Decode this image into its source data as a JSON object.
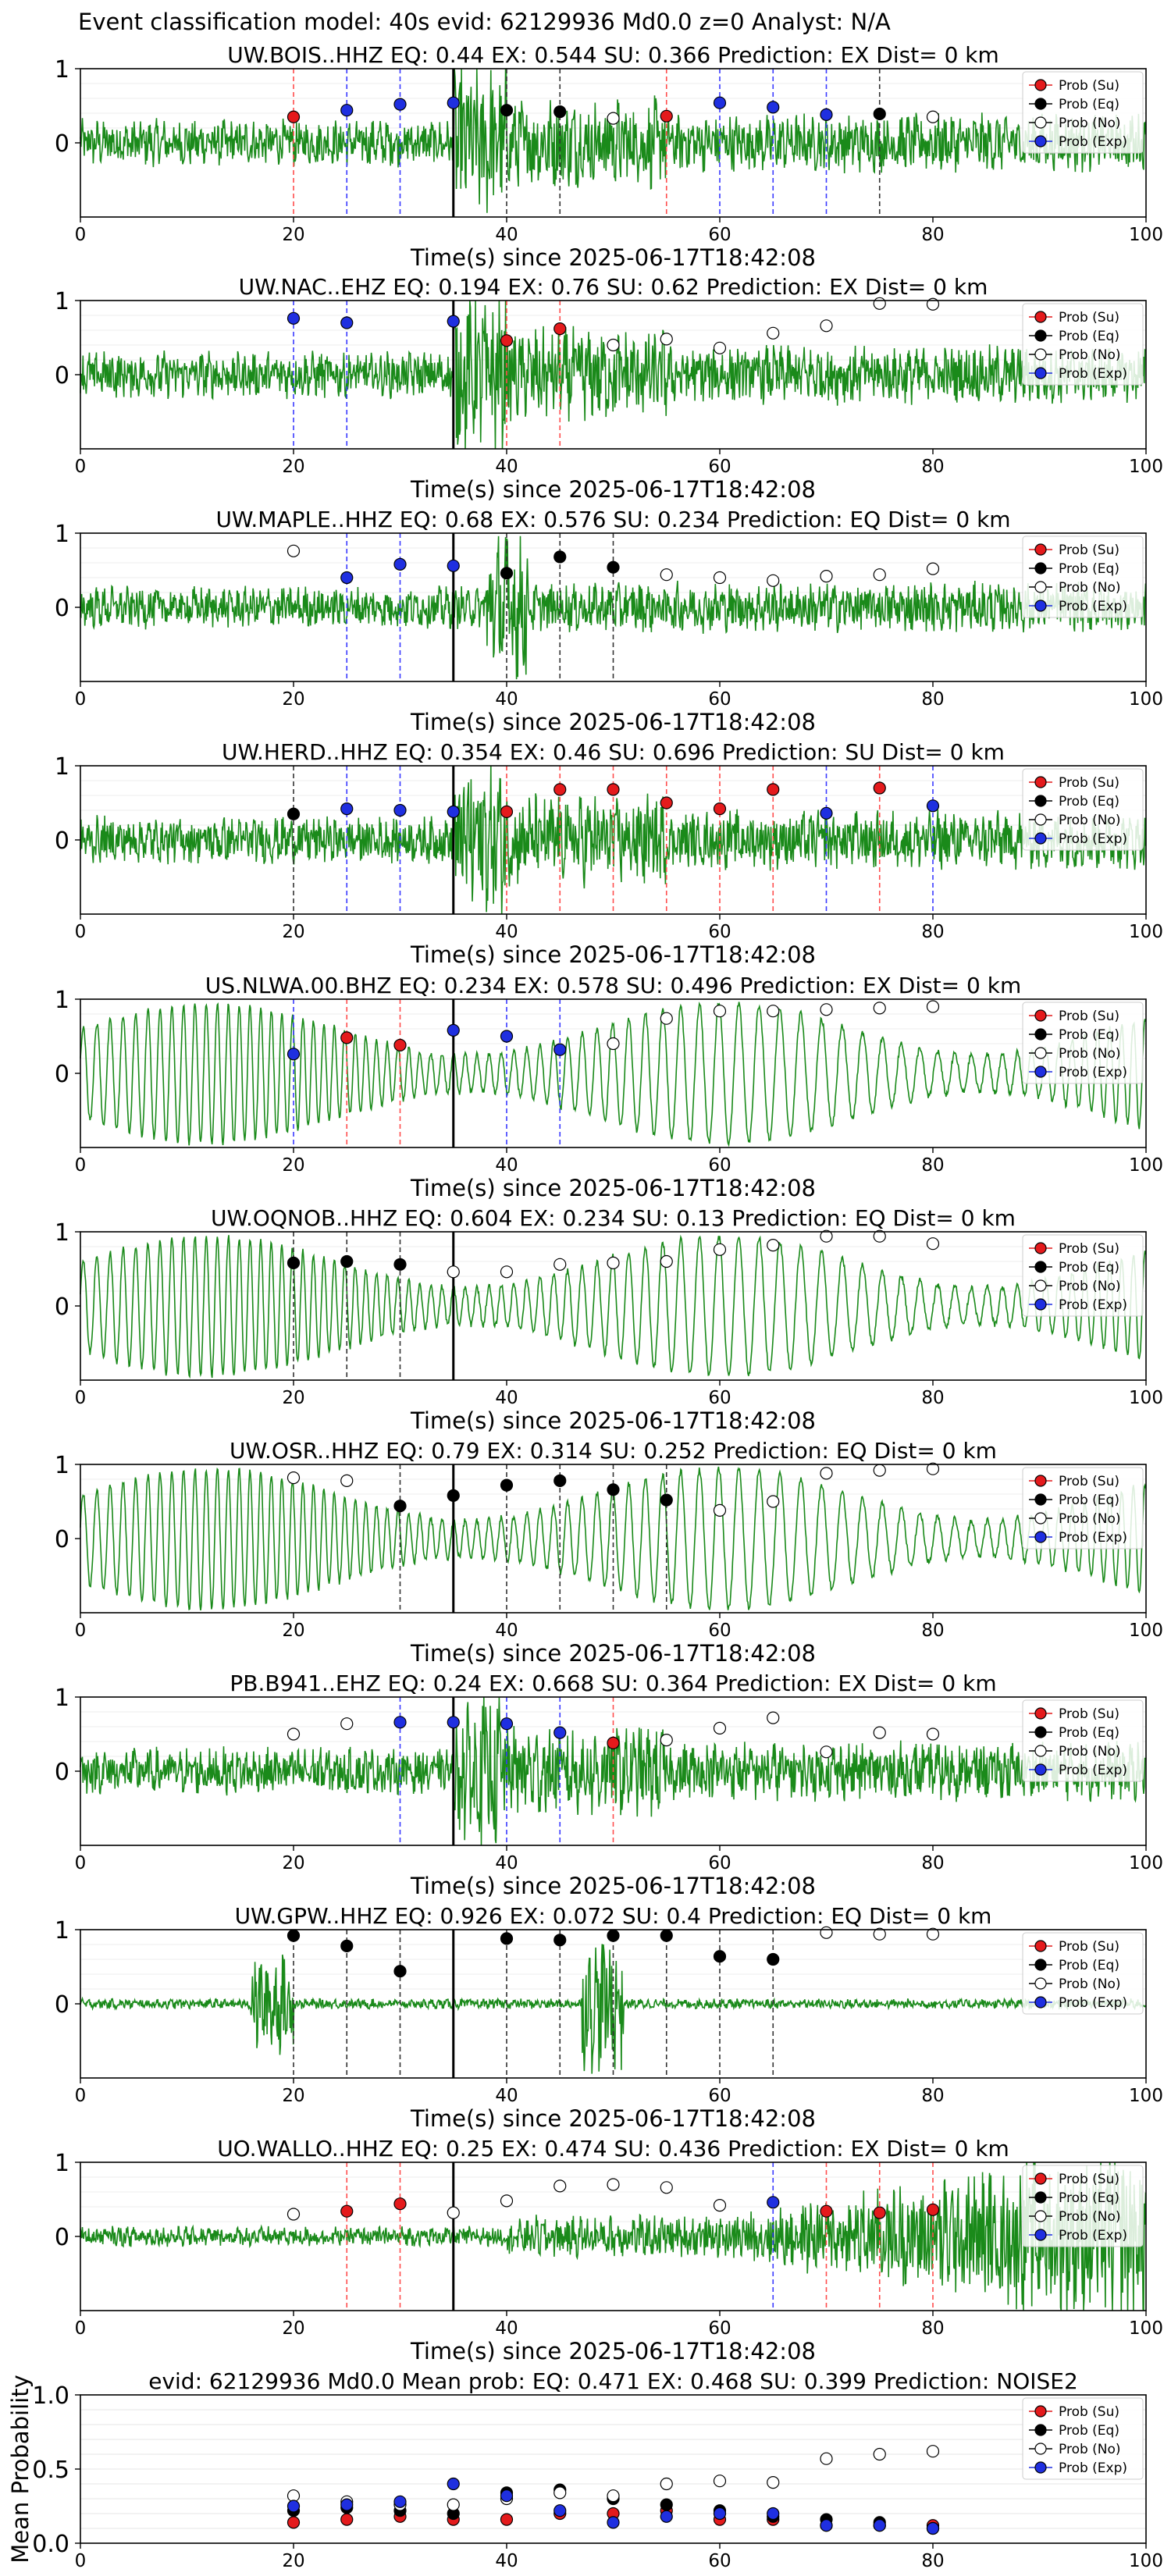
{
  "suptitle": "Event classification model: 40s evid: 62129936 Md0.0 z=0 Analyst: N/A",
  "legend_labels": [
    "Prob (Su)",
    "Prob (Eq)",
    "Prob (No)",
    "Prob (Exp)"
  ],
  "colors": {
    "su": "#e41a1c",
    "eq": "#000000",
    "no": "#ffffff",
    "exp": "#1f2fe0",
    "trace": "#1a8a1a",
    "line_su": "#ff4d4d",
    "line_eq": "#333333",
    "line_exp": "#3a3aff"
  },
  "chart_data": [
    {
      "type": "line",
      "title": "UW.BOIS..HHZ   EQ: 0.44   EX: 0.544   SU: 0.366   Prediction: EX    Dist= 0 km",
      "xlabel": "Time(s) since 2025-06-17T18:42:08",
      "ylabel": "",
      "xlim": [
        0,
        100
      ],
      "ylim": [
        -1,
        1
      ],
      "xticks": [
        0,
        20,
        40,
        60,
        80,
        100
      ],
      "yticks": [
        0,
        1
      ],
      "onset_s": 35,
      "trace_style": "high",
      "points": [
        {
          "x": 20,
          "y": 0.35,
          "class": "su"
        },
        {
          "x": 25,
          "y": 0.44,
          "class": "exp"
        },
        {
          "x": 30,
          "y": 0.52,
          "class": "exp"
        },
        {
          "x": 35,
          "y": 0.54,
          "class": "exp"
        },
        {
          "x": 40,
          "y": 0.44,
          "class": "eq"
        },
        {
          "x": 45,
          "y": 0.42,
          "class": "eq"
        },
        {
          "x": 50,
          "y": 0.33,
          "class": "no"
        },
        {
          "x": 55,
          "y": 0.36,
          "class": "su"
        },
        {
          "x": 60,
          "y": 0.54,
          "class": "exp"
        },
        {
          "x": 65,
          "y": 0.48,
          "class": "exp"
        },
        {
          "x": 70,
          "y": 0.38,
          "class": "exp"
        },
        {
          "x": 75,
          "y": 0.39,
          "class": "eq"
        },
        {
          "x": 80,
          "y": 0.35,
          "class": "no"
        }
      ]
    },
    {
      "type": "line",
      "title": "UW.NAC..EHZ   EQ: 0.194   EX: 0.76   SU: 0.62   Prediction: EX    Dist= 0 km",
      "xlabel": "Time(s) since 2025-06-17T18:42:08",
      "ylabel": "",
      "xlim": [
        0,
        100
      ],
      "ylim": [
        -1,
        1
      ],
      "xticks": [
        0,
        20,
        40,
        60,
        80,
        100
      ],
      "yticks": [
        0,
        1
      ],
      "onset_s": 35,
      "trace_style": "high",
      "points": [
        {
          "x": 20,
          "y": 0.76,
          "class": "exp"
        },
        {
          "x": 25,
          "y": 0.7,
          "class": "exp"
        },
        {
          "x": 35,
          "y": 0.72,
          "class": "exp"
        },
        {
          "x": 40,
          "y": 0.46,
          "class": "su"
        },
        {
          "x": 45,
          "y": 0.62,
          "class": "su"
        },
        {
          "x": 50,
          "y": 0.4,
          "class": "no"
        },
        {
          "x": 55,
          "y": 0.48,
          "class": "no"
        },
        {
          "x": 60,
          "y": 0.36,
          "class": "no"
        },
        {
          "x": 65,
          "y": 0.56,
          "class": "no"
        },
        {
          "x": 70,
          "y": 0.66,
          "class": "no"
        },
        {
          "x": 75,
          "y": 0.96,
          "class": "no"
        },
        {
          "x": 80,
          "y": 0.95,
          "class": "no"
        }
      ]
    },
    {
      "type": "line",
      "title": "UW.MAPLE..HHZ   EQ: 0.68   EX: 0.576   SU: 0.234   Prediction: EQ    Dist= 0 km",
      "xlabel": "Time(s) since 2025-06-17T18:42:08",
      "ylabel": "",
      "xlim": [
        0,
        100
      ],
      "ylim": [
        -1,
        1
      ],
      "xticks": [
        0,
        20,
        40,
        60,
        80,
        100
      ],
      "yticks": [
        0,
        1
      ],
      "onset_s": 35,
      "trace_style": "medium",
      "points": [
        {
          "x": 20,
          "y": 0.76,
          "class": "no"
        },
        {
          "x": 25,
          "y": 0.4,
          "class": "exp"
        },
        {
          "x": 30,
          "y": 0.58,
          "class": "exp"
        },
        {
          "x": 35,
          "y": 0.56,
          "class": "exp"
        },
        {
          "x": 40,
          "y": 0.46,
          "class": "eq"
        },
        {
          "x": 45,
          "y": 0.68,
          "class": "eq"
        },
        {
          "x": 50,
          "y": 0.54,
          "class": "eq"
        },
        {
          "x": 55,
          "y": 0.44,
          "class": "no"
        },
        {
          "x": 60,
          "y": 0.4,
          "class": "no"
        },
        {
          "x": 65,
          "y": 0.36,
          "class": "no"
        },
        {
          "x": 70,
          "y": 0.42,
          "class": "no"
        },
        {
          "x": 75,
          "y": 0.44,
          "class": "no"
        },
        {
          "x": 80,
          "y": 0.52,
          "class": "no"
        }
      ]
    },
    {
      "type": "line",
      "title": "UW.HERD..HHZ   EQ: 0.354   EX: 0.46   SU: 0.696   Prediction: SU    Dist= 0 km",
      "xlabel": "Time(s) since 2025-06-17T18:42:08",
      "ylabel": "",
      "xlim": [
        0,
        100
      ],
      "ylim": [
        -1,
        1
      ],
      "xticks": [
        0,
        20,
        40,
        60,
        80,
        100
      ],
      "yticks": [
        0,
        1
      ],
      "onset_s": 35,
      "trace_style": "high",
      "points": [
        {
          "x": 20,
          "y": 0.35,
          "class": "eq"
        },
        {
          "x": 25,
          "y": 0.42,
          "class": "exp"
        },
        {
          "x": 30,
          "y": 0.4,
          "class": "exp"
        },
        {
          "x": 35,
          "y": 0.38,
          "class": "exp"
        },
        {
          "x": 40,
          "y": 0.38,
          "class": "su"
        },
        {
          "x": 45,
          "y": 0.68,
          "class": "su"
        },
        {
          "x": 50,
          "y": 0.68,
          "class": "su"
        },
        {
          "x": 55,
          "y": 0.5,
          "class": "su"
        },
        {
          "x": 60,
          "y": 0.42,
          "class": "su"
        },
        {
          "x": 65,
          "y": 0.68,
          "class": "su"
        },
        {
          "x": 70,
          "y": 0.36,
          "class": "exp"
        },
        {
          "x": 75,
          "y": 0.7,
          "class": "su"
        },
        {
          "x": 80,
          "y": 0.46,
          "class": "exp"
        }
      ]
    },
    {
      "type": "line",
      "title": "US.NLWA.00.BHZ   EQ: 0.234   EX: 0.578   SU: 0.496   Prediction: EX    Dist= 0 km",
      "xlabel": "Time(s) since 2025-06-17T18:42:08",
      "ylabel": "",
      "xlim": [
        0,
        100
      ],
      "ylim": [
        -1,
        1
      ],
      "xticks": [
        0,
        20,
        40,
        60,
        80,
        100
      ],
      "yticks": [
        0,
        1
      ],
      "onset_s": 35,
      "trace_style": "low",
      "points": [
        {
          "x": 20,
          "y": 0.26,
          "class": "exp"
        },
        {
          "x": 25,
          "y": 0.48,
          "class": "su"
        },
        {
          "x": 30,
          "y": 0.38,
          "class": "su"
        },
        {
          "x": 35,
          "y": 0.58,
          "class": "exp"
        },
        {
          "x": 40,
          "y": 0.5,
          "class": "exp"
        },
        {
          "x": 45,
          "y": 0.32,
          "class": "exp"
        },
        {
          "x": 50,
          "y": 0.4,
          "class": "no"
        },
        {
          "x": 55,
          "y": 0.74,
          "class": "no"
        },
        {
          "x": 60,
          "y": 0.84,
          "class": "no"
        },
        {
          "x": 65,
          "y": 0.84,
          "class": "no"
        },
        {
          "x": 70,
          "y": 0.86,
          "class": "no"
        },
        {
          "x": 75,
          "y": 0.88,
          "class": "no"
        },
        {
          "x": 80,
          "y": 0.9,
          "class": "no"
        }
      ]
    },
    {
      "type": "line",
      "title": "UW.OQNOB..HHZ   EQ: 0.604   EX: 0.234   SU: 0.13   Prediction: EQ    Dist= 0 km",
      "xlabel": "Time(s) since 2025-06-17T18:42:08",
      "ylabel": "",
      "xlim": [
        0,
        100
      ],
      "ylim": [
        -1,
        1
      ],
      "xticks": [
        0,
        20,
        40,
        60,
        80,
        100
      ],
      "yticks": [
        0,
        1
      ],
      "onset_s": 35,
      "trace_style": "low",
      "points": [
        {
          "x": 20,
          "y": 0.58,
          "class": "eq"
        },
        {
          "x": 25,
          "y": 0.6,
          "class": "eq"
        },
        {
          "x": 30,
          "y": 0.56,
          "class": "eq"
        },
        {
          "x": 35,
          "y": 0.46,
          "class": "no"
        },
        {
          "x": 40,
          "y": 0.46,
          "class": "no"
        },
        {
          "x": 45,
          "y": 0.56,
          "class": "no"
        },
        {
          "x": 50,
          "y": 0.58,
          "class": "no"
        },
        {
          "x": 55,
          "y": 0.6,
          "class": "no"
        },
        {
          "x": 60,
          "y": 0.76,
          "class": "no"
        },
        {
          "x": 65,
          "y": 0.82,
          "class": "no"
        },
        {
          "x": 70,
          "y": 0.94,
          "class": "no"
        },
        {
          "x": 75,
          "y": 0.94,
          "class": "no"
        },
        {
          "x": 80,
          "y": 0.84,
          "class": "no"
        }
      ]
    },
    {
      "type": "line",
      "title": "UW.OSR..HHZ   EQ: 0.79   EX: 0.314   SU: 0.252   Prediction: EQ    Dist= 0 km",
      "xlabel": "Time(s) since 2025-06-17T18:42:08",
      "ylabel": "",
      "xlim": [
        0,
        100
      ],
      "ylim": [
        -1,
        1
      ],
      "xticks": [
        0,
        20,
        40,
        60,
        80,
        100
      ],
      "yticks": [
        0,
        1
      ],
      "onset_s": 35,
      "trace_style": "low",
      "points": [
        {
          "x": 20,
          "y": 0.82,
          "class": "no"
        },
        {
          "x": 25,
          "y": 0.78,
          "class": "no"
        },
        {
          "x": 30,
          "y": 0.44,
          "class": "eq"
        },
        {
          "x": 35,
          "y": 0.58,
          "class": "eq"
        },
        {
          "x": 40,
          "y": 0.72,
          "class": "eq"
        },
        {
          "x": 45,
          "y": 0.78,
          "class": "eq"
        },
        {
          "x": 50,
          "y": 0.66,
          "class": "eq"
        },
        {
          "x": 55,
          "y": 0.52,
          "class": "eq"
        },
        {
          "x": 60,
          "y": 0.38,
          "class": "no"
        },
        {
          "x": 65,
          "y": 0.5,
          "class": "no"
        },
        {
          "x": 70,
          "y": 0.88,
          "class": "no"
        },
        {
          "x": 75,
          "y": 0.92,
          "class": "no"
        },
        {
          "x": 80,
          "y": 0.94,
          "class": "no"
        }
      ]
    },
    {
      "type": "line",
      "title": "PB.B941..EHZ   EQ: 0.24   EX: 0.668   SU: 0.364   Prediction: EX    Dist= 0 km",
      "xlabel": "Time(s) since 2025-06-17T18:42:08",
      "ylabel": "",
      "xlim": [
        0,
        100
      ],
      "ylim": [
        -1,
        1
      ],
      "xticks": [
        0,
        20,
        40,
        60,
        80,
        100
      ],
      "yticks": [
        0,
        1
      ],
      "onset_s": 35,
      "trace_style": "high",
      "points": [
        {
          "x": 20,
          "y": 0.5,
          "class": "no"
        },
        {
          "x": 25,
          "y": 0.64,
          "class": "no"
        },
        {
          "x": 30,
          "y": 0.66,
          "class": "exp"
        },
        {
          "x": 35,
          "y": 0.66,
          "class": "exp"
        },
        {
          "x": 40,
          "y": 0.64,
          "class": "exp"
        },
        {
          "x": 45,
          "y": 0.52,
          "class": "exp"
        },
        {
          "x": 50,
          "y": 0.38,
          "class": "su"
        },
        {
          "x": 55,
          "y": 0.42,
          "class": "no"
        },
        {
          "x": 60,
          "y": 0.58,
          "class": "no"
        },
        {
          "x": 65,
          "y": 0.72,
          "class": "no"
        },
        {
          "x": 70,
          "y": 0.26,
          "class": "no"
        },
        {
          "x": 75,
          "y": 0.52,
          "class": "no"
        },
        {
          "x": 80,
          "y": 0.5,
          "class": "no"
        }
      ]
    },
    {
      "type": "line",
      "title": "UW.GPW..HHZ   EQ: 0.926   EX: 0.072   SU: 0.4   Prediction: EQ    Dist= 0 km",
      "xlabel": "Time(s) since 2025-06-17T18:42:08",
      "ylabel": "",
      "xlim": [
        0,
        100
      ],
      "ylim": [
        -1,
        1
      ],
      "xticks": [
        0,
        20,
        40,
        60,
        80,
        100
      ],
      "yticks": [
        0,
        1
      ],
      "onset_s": 35,
      "trace_style": "quiet",
      "points": [
        {
          "x": 20,
          "y": 0.92,
          "class": "eq"
        },
        {
          "x": 25,
          "y": 0.78,
          "class": "eq"
        },
        {
          "x": 30,
          "y": 0.44,
          "class": "eq"
        },
        {
          "x": 40,
          "y": 0.88,
          "class": "eq"
        },
        {
          "x": 45,
          "y": 0.86,
          "class": "eq"
        },
        {
          "x": 50,
          "y": 0.92,
          "class": "eq"
        },
        {
          "x": 55,
          "y": 0.92,
          "class": "eq"
        },
        {
          "x": 60,
          "y": 0.64,
          "class": "eq"
        },
        {
          "x": 65,
          "y": 0.6,
          "class": "eq"
        },
        {
          "x": 70,
          "y": 0.96,
          "class": "no"
        },
        {
          "x": 75,
          "y": 0.94,
          "class": "no"
        },
        {
          "x": 80,
          "y": 0.94,
          "class": "no"
        }
      ]
    },
    {
      "type": "line",
      "title": "UO.WALLO..HHZ   EQ: 0.25   EX: 0.474   SU: 0.436   Prediction: EX    Dist= 0 km",
      "xlabel": "Time(s) since 2025-06-17T18:42:08",
      "ylabel": "",
      "xlim": [
        0,
        100
      ],
      "ylim": [
        -1,
        1
      ],
      "xticks": [
        0,
        20,
        40,
        60,
        80,
        100
      ],
      "yticks": [
        0,
        1
      ],
      "onset_s": 35,
      "trace_style": "growing",
      "points": [
        {
          "x": 20,
          "y": 0.3,
          "class": "no"
        },
        {
          "x": 25,
          "y": 0.34,
          "class": "su"
        },
        {
          "x": 30,
          "y": 0.44,
          "class": "su"
        },
        {
          "x": 35,
          "y": 0.32,
          "class": "no"
        },
        {
          "x": 40,
          "y": 0.48,
          "class": "no"
        },
        {
          "x": 45,
          "y": 0.68,
          "class": "no"
        },
        {
          "x": 50,
          "y": 0.7,
          "class": "no"
        },
        {
          "x": 55,
          "y": 0.66,
          "class": "no"
        },
        {
          "x": 60,
          "y": 0.42,
          "class": "no"
        },
        {
          "x": 65,
          "y": 0.46,
          "class": "exp"
        },
        {
          "x": 70,
          "y": 0.34,
          "class": "su"
        },
        {
          "x": 75,
          "y": 0.32,
          "class": "su"
        },
        {
          "x": 80,
          "y": 0.36,
          "class": "su"
        }
      ]
    },
    {
      "type": "scatter",
      "title": "evid: 62129936  Md0.0   Mean prob:   EQ: 0.471   EX: 0.468   SU: 0.399   Prediction: NOISE2",
      "xlabel": "",
      "ylabel": "Mean Probability",
      "xlim": [
        0,
        100
      ],
      "ylim": [
        0,
        1
      ],
      "xticks": [
        0,
        20,
        40,
        60,
        80,
        100
      ],
      "yticks": [
        0.0,
        0.5,
        1.0
      ],
      "ytick_labels": [
        "0.0",
        "0.5",
        "1.0"
      ],
      "grid": true,
      "x": [
        20,
        25,
        30,
        35,
        40,
        45,
        50,
        55,
        60,
        65,
        70,
        75,
        80
      ],
      "series": [
        {
          "name": "Prob (Su)",
          "class": "su",
          "values": [
            0.14,
            0.16,
            0.18,
            0.16,
            0.16,
            0.2,
            0.2,
            0.22,
            0.16,
            0.16,
            0.12,
            0.12,
            0.12
          ]
        },
        {
          "name": "Prob (Eq)",
          "class": "eq",
          "values": [
            0.22,
            0.24,
            0.22,
            0.2,
            0.34,
            0.36,
            0.3,
            0.26,
            0.22,
            0.18,
            0.16,
            0.14,
            0.1
          ]
        },
        {
          "name": "Prob (No)",
          "class": "no",
          "values": [
            0.32,
            0.28,
            0.26,
            0.26,
            0.3,
            0.34,
            0.32,
            0.4,
            0.42,
            0.41,
            0.57,
            0.6,
            0.62
          ]
        },
        {
          "name": "Prob (Exp)",
          "class": "exp",
          "values": [
            0.25,
            0.26,
            0.28,
            0.4,
            0.32,
            0.22,
            0.14,
            0.18,
            0.2,
            0.2,
            0.12,
            0.12,
            0.1
          ]
        }
      ]
    }
  ]
}
